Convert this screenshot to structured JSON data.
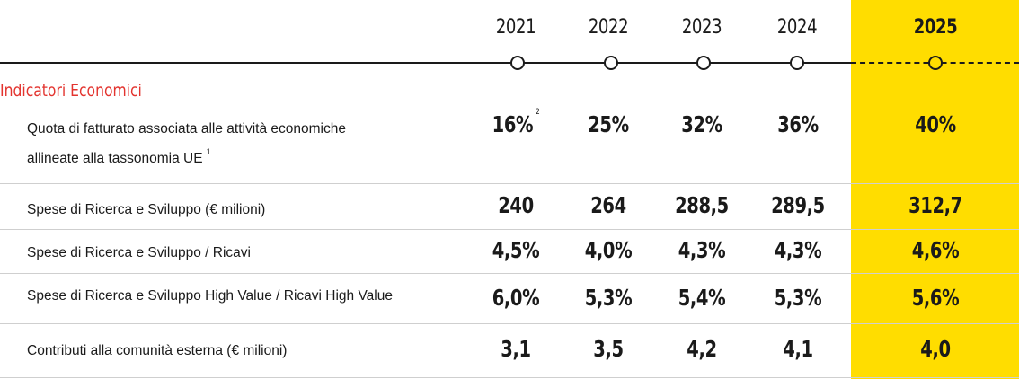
{
  "years": [
    "2021",
    "2022",
    "2023",
    "2024",
    "2025"
  ],
  "section_title": "Indicatori Economici",
  "rows": [
    {
      "label_line1": "Quota di fatturato associata alle attività economiche",
      "label_line2": "allineate alla tassonomia UE",
      "label_note": "1",
      "values": [
        "16%",
        "25%",
        "32%",
        "36%",
        "40%"
      ],
      "first_value_note": "2"
    },
    {
      "label": "Spese di Ricerca e Sviluppo (€ milioni)",
      "values": [
        "240",
        "264",
        "288,5",
        "289,5",
        "312,7"
      ]
    },
    {
      "label": "Spese di Ricerca e Sviluppo / Ricavi",
      "values": [
        "4,5%",
        "4,0%",
        "4,3%",
        "4,3%",
        "4,6%"
      ]
    },
    {
      "label": "Spese di Ricerca e Sviluppo High Value / Ricavi High Value",
      "values": [
        "6,0%",
        "5,3%",
        "5,4%",
        "5,3%",
        "5,6%"
      ]
    },
    {
      "label": "Contributi alla comunità esterna (€ milioni)",
      "values": [
        "3,1",
        "3,5",
        "4,2",
        "4,1",
        "4,0"
      ]
    }
  ],
  "colors": {
    "highlight": "#ffdd00",
    "section_title": "#e3342f",
    "text": "#1a1a1a"
  }
}
